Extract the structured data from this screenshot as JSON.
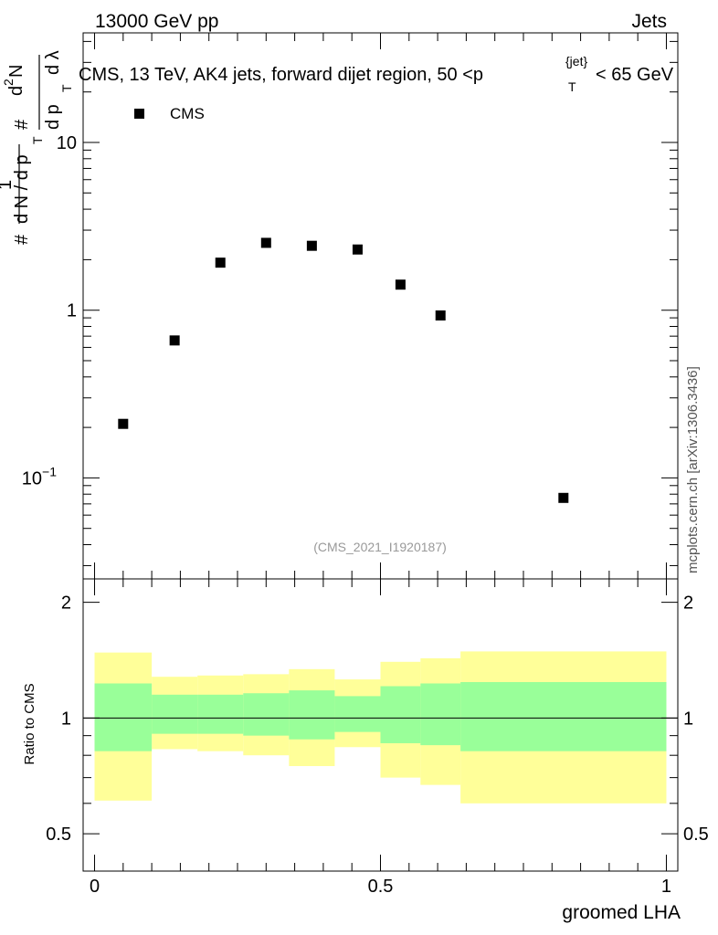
{
  "header": {
    "energy_label": "13000 GeV pp",
    "category_label": "Jets"
  },
  "side_note": "mcplots.cern.ch [arXiv:1306.3436]",
  "watermark": "(CMS_2021_I1920187)",
  "chart_data": [
    {
      "type": "scatter",
      "title": "CMS, 13 TeV, AK4 jets, forward dijet region, 50 <p_T^{jet}< 65 GeV",
      "title_parts": {
        "before": "CMS, 13 TeV, AK4 jets, forward dijet region, 50 <p",
        "sup": "{jet}",
        "sub": "T",
        "after": "< 65 GeV"
      },
      "ylabel": "1/(dN/dp_T) d²N/(dp_T dλ)",
      "ylabel_parts": {
        "num_one": "1",
        "den": "d N / d p",
        "num_frac": "d",
        "sq": "2",
        "n": "N",
        "den2": "d p",
        "lambda": "d λ",
        "hash": "#",
        "T": "T"
      },
      "yscale": "log",
      "ylim": [
        0.025,
        45
      ],
      "yticks": [
        {
          "value": 0.1,
          "base": "10",
          "exp": "−1"
        },
        {
          "value": 1,
          "base": "1",
          "exp": ""
        },
        {
          "value": 10,
          "base": "10",
          "exp": ""
        }
      ],
      "xlim": [
        -0.02,
        1.02
      ],
      "legend": {
        "position": "top-left",
        "entries": [
          "CMS"
        ]
      },
      "series": [
        {
          "name": "CMS",
          "marker": "square",
          "x": [
            0.05,
            0.14,
            0.22,
            0.3,
            0.38,
            0.46,
            0.535,
            0.605,
            0.82
          ],
          "y": [
            0.21,
            0.66,
            1.92,
            2.52,
            2.42,
            2.3,
            1.42,
            0.93,
            0.076
          ]
        }
      ]
    },
    {
      "type": "area",
      "ylabel": "Ratio to CMS",
      "xlabel": "groomed LHA",
      "xlim": [
        -0.02,
        1.02
      ],
      "ylim": [
        0.4,
        2.3
      ],
      "yticks": [
        "0.5",
        "1",
        "2"
      ],
      "xticks": [
        "0",
        "0.5",
        "1"
      ],
      "reference_line": 1,
      "bin_edges": [
        0,
        0.1,
        0.18,
        0.26,
        0.34,
        0.42,
        0.5,
        0.57,
        0.64,
        1.0
      ],
      "bands": [
        {
          "name": "total uncertainty",
          "color": "#ffff99",
          "low": [
            0.61,
            0.83,
            0.82,
            0.8,
            0.75,
            0.84,
            0.7,
            0.67,
            0.6
          ],
          "high": [
            1.48,
            1.28,
            1.29,
            1.3,
            1.34,
            1.26,
            1.4,
            1.43,
            1.49
          ]
        },
        {
          "name": "statistical uncertainty",
          "color": "#99ff99",
          "low": [
            0.82,
            0.91,
            0.91,
            0.9,
            0.88,
            0.92,
            0.86,
            0.85,
            0.82
          ],
          "high": [
            1.23,
            1.15,
            1.15,
            1.16,
            1.18,
            1.14,
            1.21,
            1.23,
            1.24
          ]
        }
      ]
    }
  ]
}
